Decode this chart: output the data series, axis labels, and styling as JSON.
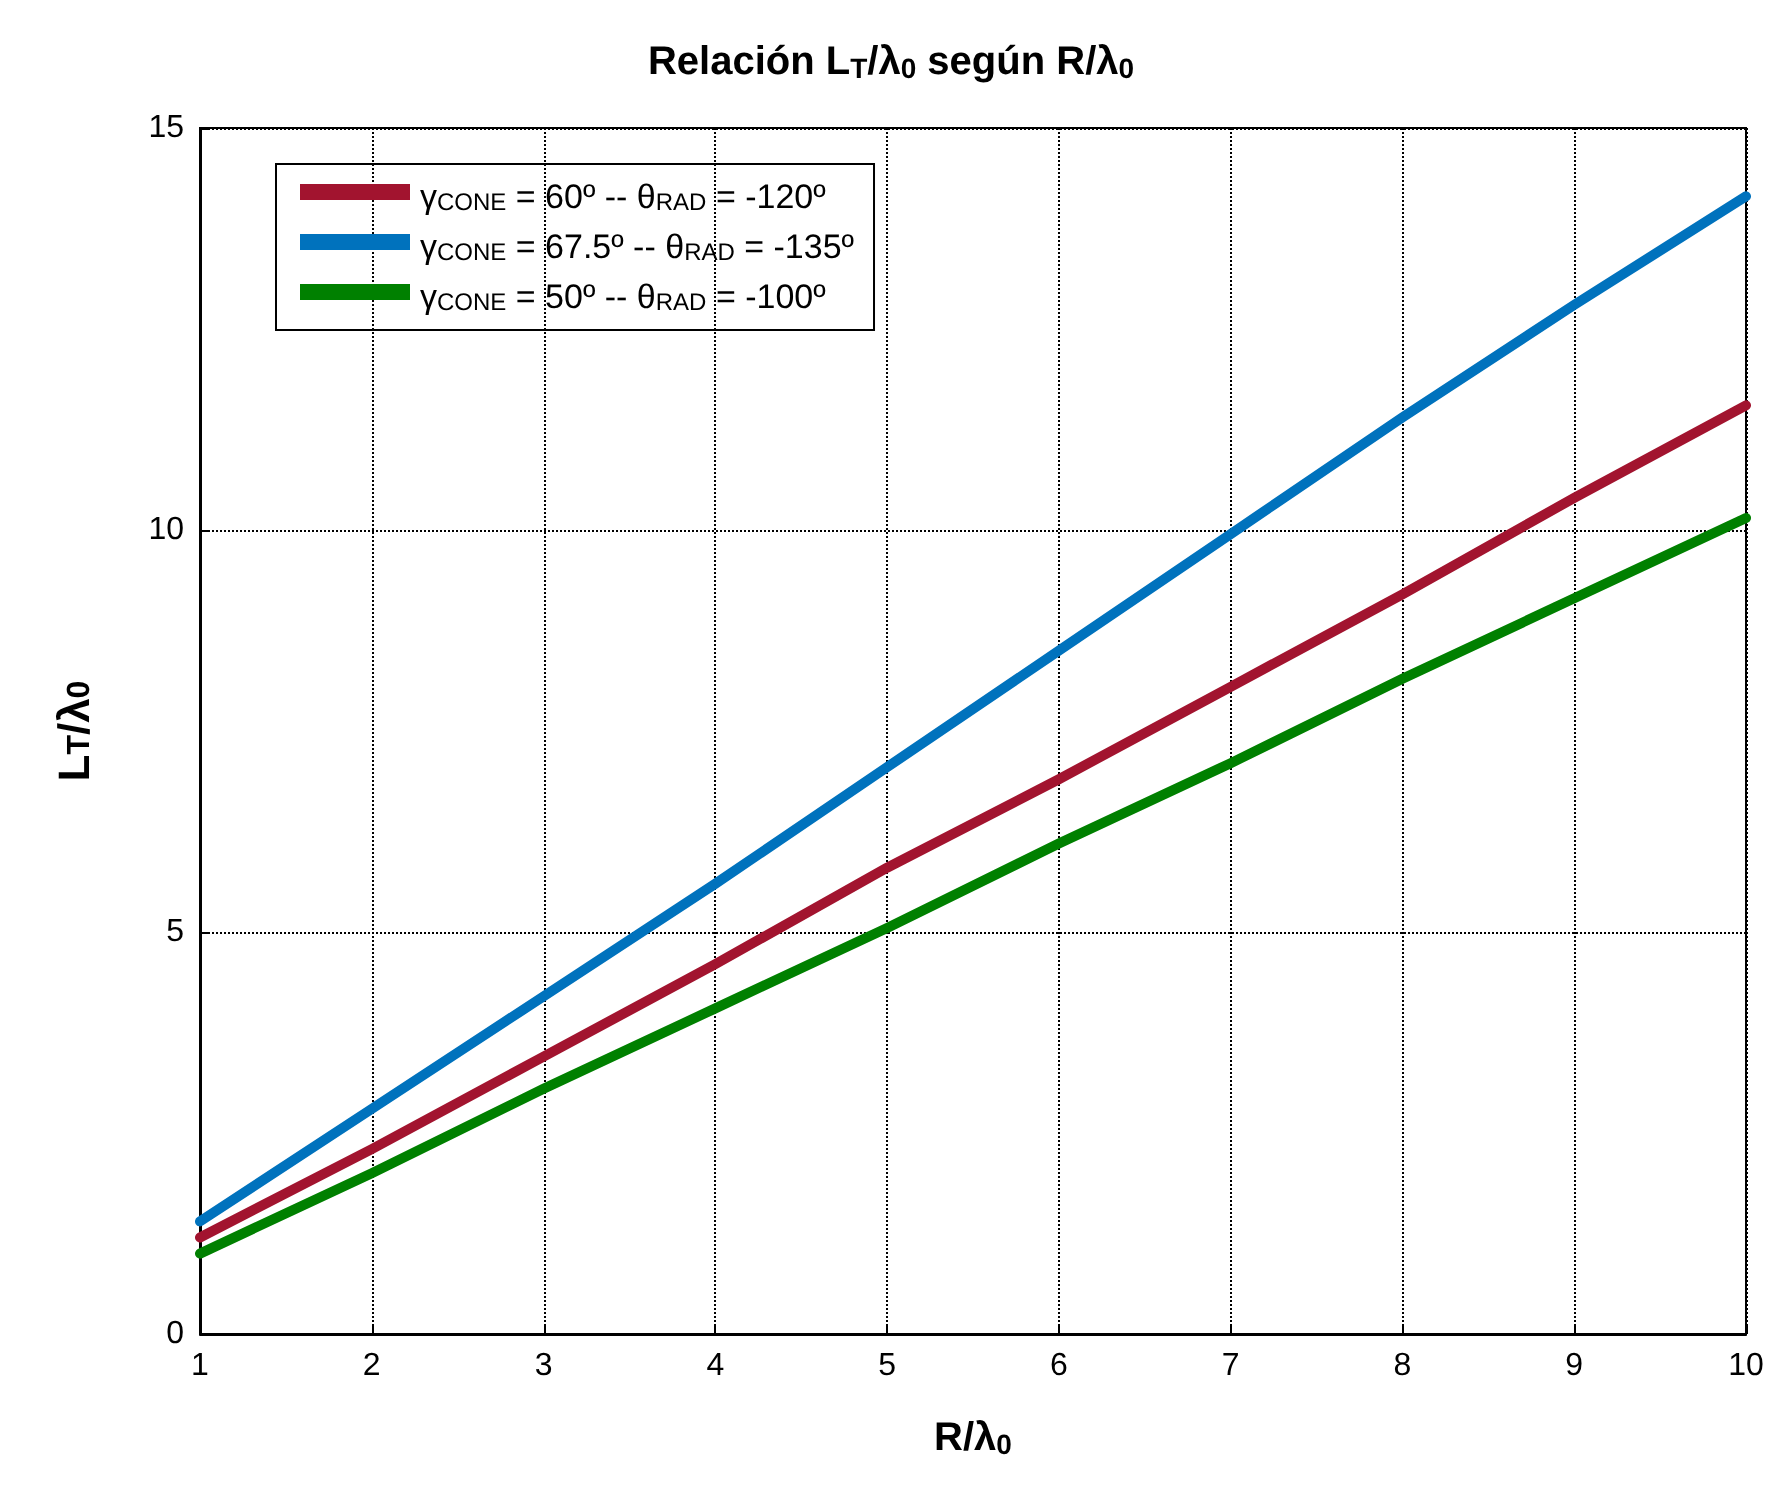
{
  "chart_data": {
    "type": "line",
    "title": "Relación L$_{T}$/λ$_{0}$ según R/λ$_{0}$",
    "xlabel": "R/λ$_{0}$",
    "ylabel": "L$_{T}$/λ$_{0}$",
    "x": [
      1,
      2,
      3,
      4,
      5,
      6,
      7,
      8,
      9,
      10
    ],
    "series": [
      {
        "name": "γ$_{CONE}$ = 60º -- θ$_{RAD}$ = -120º",
        "color": "#a2142f",
        "values": [
          1.2,
          2.3,
          3.45,
          4.6,
          5.8,
          6.9,
          8.05,
          9.2,
          10.4,
          11.55
        ]
      },
      {
        "name": "γ$_{CONE}$ = 67.5º -- θ$_{RAD}$ = -135º",
        "color": "#0072bd",
        "values": [
          1.4,
          2.8,
          4.2,
          5.6,
          7.05,
          8.5,
          9.95,
          11.4,
          12.8,
          14.15
        ]
      },
      {
        "name": "γ$_{CONE}$ = 50º -- θ$_{RAD}$ = -100º",
        "color": "#008000",
        "values": [
          1.0,
          2.0,
          3.05,
          4.05,
          5.05,
          6.1,
          7.1,
          8.15,
          9.15,
          10.15
        ]
      }
    ],
    "xlim": [
      1,
      10
    ],
    "xticks": [
      1,
      2,
      3,
      4,
      5,
      6,
      7,
      8,
      9,
      10
    ],
    "ylim": [
      0,
      15
    ],
    "yticks": [
      0,
      5,
      10,
      15
    ],
    "grid": true,
    "legend": "top left",
    "marker": "none",
    "line_style": "solid"
  }
}
